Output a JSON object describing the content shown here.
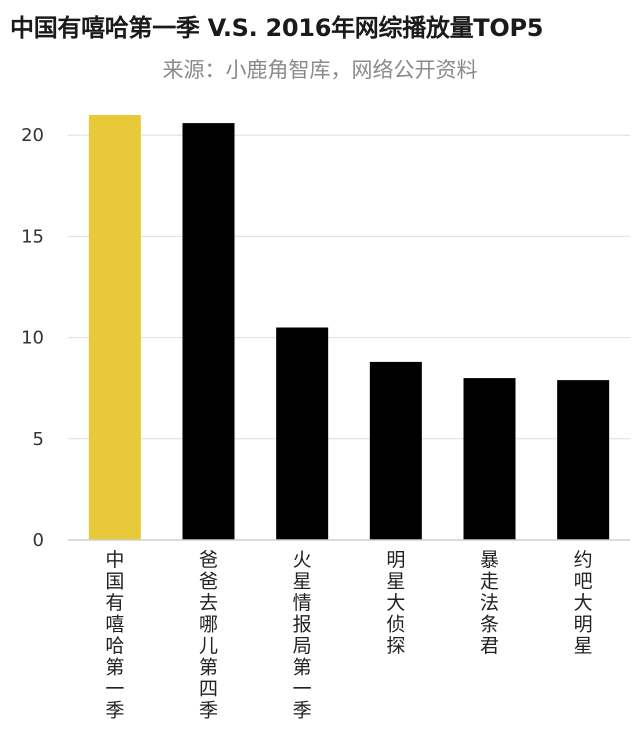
{
  "chart_data": {
    "type": "bar",
    "title": "中国有嘻哈第一季 V.S. 2016年网综播放量TOP5",
    "subtitle": "来源：小鹿角智库，网络公开资料",
    "categories": [
      "中国有嘻哈第一季",
      "爸爸去哪儿第四季",
      "火星情报局第一季",
      "明星大侦探",
      "暴走法条君",
      "约吧大明星"
    ],
    "values": [
      21.0,
      20.6,
      10.5,
      8.8,
      8.0,
      7.9
    ],
    "colors": [
      "#e8c93a",
      "#000000",
      "#000000",
      "#000000",
      "#000000",
      "#000000"
    ],
    "ylim": [
      0,
      21
    ],
    "yticks": [
      0,
      5,
      10,
      15,
      20
    ],
    "grid": true,
    "xlabel": "",
    "ylabel": ""
  }
}
